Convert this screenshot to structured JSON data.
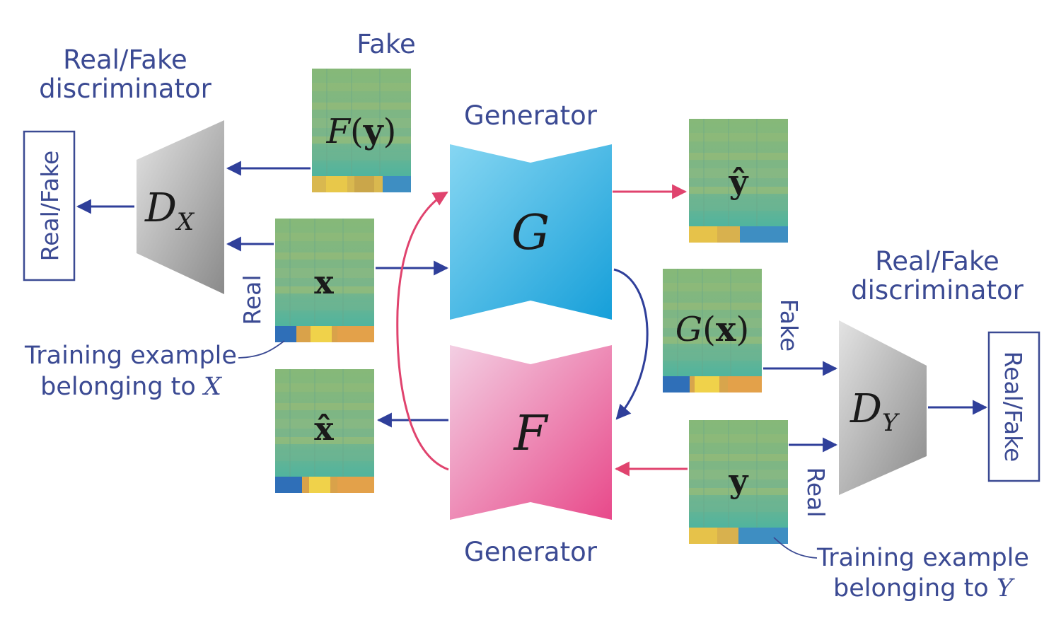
{
  "labels": {
    "discriminator_x_title_line1": "Real/Fake",
    "discriminator_x_title_line2": "discriminator",
    "discriminator_y_title_line1": "Real/Fake",
    "discriminator_y_title_line2": "discriminator",
    "generator_top": "Generator",
    "generator_bottom": "Generator",
    "fake_top": "Fake",
    "fake_right": "Fake",
    "real_left": "Real",
    "real_right": "Real",
    "output_left": "Real/Fake",
    "output_right": "Real/Fake",
    "training_x_line1": "Training example",
    "training_x_line2_prefix": "belonging to ",
    "training_x_symbol": "X",
    "training_y_line1": "Training example",
    "training_y_line2_prefix": "belonging to ",
    "training_y_symbol": "Y"
  },
  "symbols": {
    "G": "G",
    "F": "F",
    "D": "D",
    "DX_sub": "X",
    "DY_sub": "Y",
    "F_of": "F",
    "G_of": "G",
    "y_vec": "y",
    "x_vec": "x",
    "y_hat": "ŷ",
    "x_hat": "x̂",
    "paren_open": "(",
    "paren_close": ")"
  },
  "colors": {
    "text": "#3b4a93",
    "blue_arrow": "#2f3f9a",
    "pink_arrow": "#e0436e",
    "generator_g_light": "#7fd3f0",
    "generator_g_dark": "#1aa3dc",
    "generator_f_light": "#f2c6de",
    "generator_f_dark": "#e94c8a",
    "discriminator_light": "#d9d9d9",
    "discriminator_dark": "#8d8d8d",
    "spectrogram_base": "#7fb37a"
  }
}
